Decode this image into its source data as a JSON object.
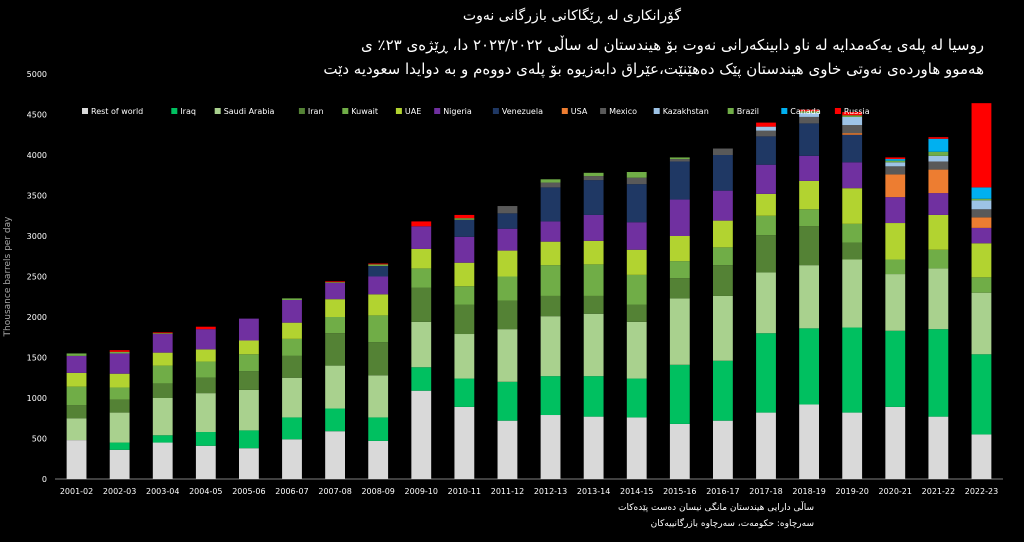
{
  "title": "گۆرانکاری لە ڕێگاکانی بازرگانی نەوت",
  "subtitle_line1": "روسیا لە پلەی یەکەمدایە  لە ناو دابینکەرانی نەوت بۆ هیندستان لە ساڵی ٢٠٢٣/٢٠٢٢ دا، ڕێژەی ٢٣٪ ی",
  "subtitle_line2": "هەموو  هاوردەی نەوتی خاوی هیندستان پێک دەهێنێت،عێراق دابەزیوە بۆ  پلەی دووەم و بە دوایدا سعودیە دێت",
  "note_line1": "ساڵی دارایی هیندستان مانگی نیسان دەست پێدەکات",
  "note_line2": "سەرچاوە: حکومەت، سەرچاوە بازرگانییەکان",
  "chart_data": {
    "type": "bar",
    "stacked": true,
    "ylabel": "Thousance barrels per day",
    "ylim": [
      0,
      5000
    ],
    "yticks": [
      0,
      500,
      1000,
      1500,
      2000,
      2500,
      3000,
      3500,
      4000,
      4500,
      5000
    ],
    "grid": false,
    "legend_position": "top",
    "categories": [
      "2001-02",
      "2002-03",
      "2003-04",
      "2004-05",
      "2005-06",
      "2006-07",
      "2007-08",
      "2008-09",
      "2009-10",
      "2010-11",
      "2011-12",
      "2012-13",
      "2013-14",
      "2014-15",
      "2015-16",
      "2016-17",
      "2017-18",
      "2018-19",
      "2019-20",
      "2020-21",
      "2021-22",
      "2022-23"
    ],
    "series": [
      {
        "name": "Rest of world",
        "color": "#d9d9d9",
        "values": [
          480,
          360,
          450,
          410,
          380,
          490,
          590,
          470,
          1090,
          890,
          720,
          790,
          770,
          760,
          680,
          720,
          820,
          920,
          820,
          890,
          770,
          550
        ]
      },
      {
        "name": "Iraq",
        "color": "#00c060",
        "values": [
          0,
          90,
          90,
          170,
          220,
          270,
          280,
          290,
          290,
          350,
          480,
          480,
          500,
          480,
          730,
          740,
          980,
          940,
          1050,
          940,
          1080,
          990
        ]
      },
      {
        "name": "Saudi Arabia",
        "color": "#a9d18e",
        "values": [
          270,
          370,
          460,
          480,
          500,
          490,
          530,
          520,
          560,
          550,
          650,
          740,
          770,
          700,
          820,
          800,
          750,
          780,
          840,
          700,
          750,
          760
        ]
      },
      {
        "name": "Iran",
        "color": "#548235",
        "values": [
          160,
          160,
          180,
          190,
          230,
          270,
          400,
          410,
          420,
          360,
          350,
          250,
          220,
          210,
          250,
          380,
          460,
          480,
          210,
          0,
          0,
          0
        ]
      },
      {
        "name": "Kuwait",
        "color": "#70ad47",
        "values": [
          230,
          150,
          220,
          200,
          210,
          210,
          200,
          330,
          240,
          230,
          300,
          380,
          390,
          370,
          210,
          220,
          240,
          210,
          230,
          180,
          230,
          190
        ]
      },
      {
        "name": "UAE",
        "color": "#b2d330",
        "values": [
          170,
          170,
          160,
          150,
          170,
          200,
          220,
          260,
          240,
          290,
          320,
          290,
          290,
          310,
          310,
          330,
          270,
          350,
          440,
          450,
          430,
          420
        ]
      },
      {
        "name": "Nigeria",
        "color": "#7030a0",
        "values": [
          210,
          250,
          230,
          250,
          270,
          280,
          200,
          220,
          280,
          320,
          270,
          250,
          320,
          340,
          450,
          370,
          360,
          310,
          320,
          320,
          270,
          190
        ]
      },
      {
        "name": "Venezuela",
        "color": "#1f3864",
        "values": [
          0,
          0,
          0,
          0,
          0,
          0,
          0,
          130,
          0,
          210,
          190,
          420,
          430,
          470,
          470,
          440,
          350,
          400,
          340,
          0,
          0,
          0
        ]
      },
      {
        "name": "USA",
        "color": "#ed7d31",
        "values": [
          0,
          0,
          0,
          0,
          0,
          0,
          0,
          0,
          0,
          0,
          0,
          0,
          0,
          0,
          0,
          0,
          0,
          0,
          20,
          280,
          290,
          130
        ]
      },
      {
        "name": "Mexico",
        "color": "#595959",
        "values": [
          0,
          0,
          0,
          0,
          0,
          0,
          0,
          0,
          0,
          0,
          90,
          60,
          50,
          80,
          30,
          80,
          70,
          80,
          100,
          100,
          100,
          100
        ]
      },
      {
        "name": "Kazakhstan",
        "color": "#9dc3e6",
        "values": [
          0,
          0,
          0,
          0,
          0,
          0,
          0,
          0,
          0,
          0,
          0,
          0,
          0,
          0,
          0,
          0,
          50,
          50,
          100,
          50,
          70,
          110
        ]
      },
      {
        "name": "Brazil",
        "color": "#70ad47",
        "values": [
          30,
          20,
          10,
          0,
          0,
          20,
          10,
          20,
          0,
          20,
          0,
          40,
          40,
          70,
          20,
          0,
          0,
          20,
          20,
          20,
          50,
          20
        ]
      },
      {
        "name": "Canada",
        "color": "#00b0f0",
        "values": [
          0,
          0,
          0,
          0,
          0,
          0,
          0,
          0,
          0,
          0,
          0,
          0,
          0,
          0,
          0,
          0,
          0,
          0,
          0,
          20,
          160,
          140
        ]
      },
      {
        "name": "Russia",
        "color": "#ff0000",
        "values": [
          0,
          20,
          10,
          30,
          0,
          0,
          10,
          10,
          60,
          40,
          0,
          0,
          0,
          0,
          0,
          0,
          50,
          20,
          40,
          20,
          20,
          1040
        ]
      }
    ]
  }
}
